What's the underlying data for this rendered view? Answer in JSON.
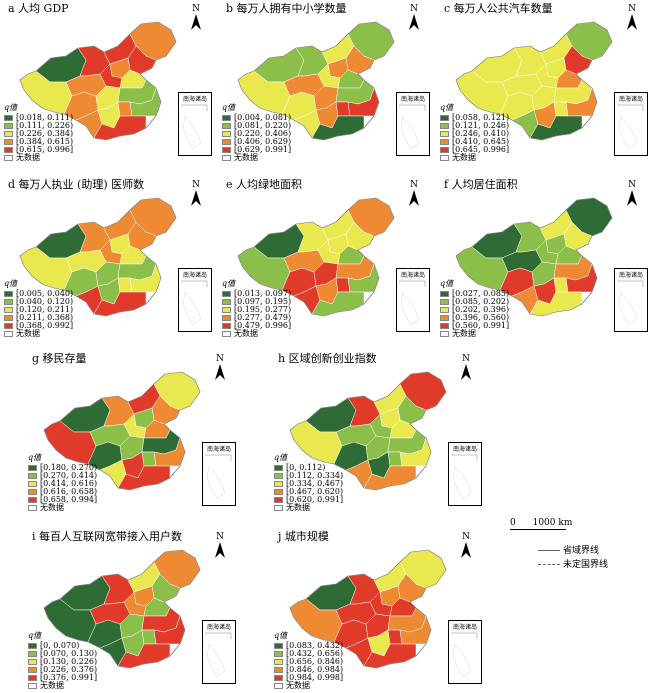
{
  "colors": {
    "c1": "#2e6b35",
    "c2": "#8cbe4a",
    "c3": "#e9e84e",
    "c4": "#ee8a33",
    "c5": "#e03a2b",
    "none": "#ffffff"
  },
  "common": {
    "north": "N",
    "inset": "南海诸岛",
    "legend_head": "q值",
    "nodata": "无数据"
  },
  "panels": [
    {
      "title": "a 人均 GDP",
      "ranges": [
        "[0.018, 0.111)",
        "[0.111, 0.226)",
        "[0.226, 0.384)",
        "[0.384, 0.615)",
        "[0.615, 0.996]"
      ]
    },
    {
      "title": "b 每万人拥有中小学数量",
      "ranges": [
        "[0.004, 0.081)",
        "[0.081, 0.220)",
        "[0.220, 0.406)",
        "[0.406, 0.629)",
        "[0.629, 0.991]"
      ]
    },
    {
      "title": "c 每万人公共汽车数量",
      "ranges": [
        "[0.058, 0.121)",
        "[0.121, 0.246)",
        "[0.246, 0.410)",
        "[0.410, 0.645)",
        "[0.645, 0.996]"
      ]
    },
    {
      "title": "d 每万人执业 (助理) 医师数",
      "ranges": [
        "[0.005, 0.040)",
        "[0.040, 0.120)",
        "[0.120, 0.211)",
        "[0.211, 0.368)",
        "[0.368, 0.992]"
      ]
    },
    {
      "title": "e 人均绿地面积",
      "ranges": [
        "[0.013, 0.097)",
        "[0.097, 0.195)",
        "[0.195, 0.277)",
        "[0.277, 0.479)",
        "[0.479, 0.996]"
      ]
    },
    {
      "title": "f 人均居住面积",
      "ranges": [
        "[0.027, 0.085)",
        "[0.085, 0.202)",
        "[0.202, 0.396)",
        "[0.396, 0.560)",
        "[0.560, 0.991]"
      ]
    },
    {
      "title": "g 移民存量",
      "ranges": [
        "[0.180, 0.270)",
        "[0.270, 0.414)",
        "[0.414, 0.616)",
        "[0.616, 0.658)",
        "[0.658, 0.994]"
      ]
    },
    {
      "title": "h 区域创新创业指数",
      "ranges": [
        "[0, 0.112)",
        "[0.112, 0.334)",
        "[0.334, 0.467)",
        "[0.467, 0.620)",
        "[0.620, 0.991]"
      ]
    },
    {
      "title": "i 每百人互联网宽带接入用户数",
      "ranges": [
        "[0, 0.070)",
        "[0.070, 0.130)",
        "[0.130, 0.226)",
        "[0.226, 0.376)",
        "[0.376, 0.991]"
      ]
    },
    {
      "title": "j 城市规模",
      "ranges": [
        "[0.083, 0.432)",
        "[0.432, 0.656)",
        "[0.656, 0.846)",
        "[0.846, 0.984)",
        "[0.984, 0.998]"
      ]
    }
  ],
  "scalebar": {
    "zero": "0",
    "dist": "1000 km"
  },
  "boundaries": {
    "province": "省域界线",
    "undefined": "未定国界线"
  }
}
